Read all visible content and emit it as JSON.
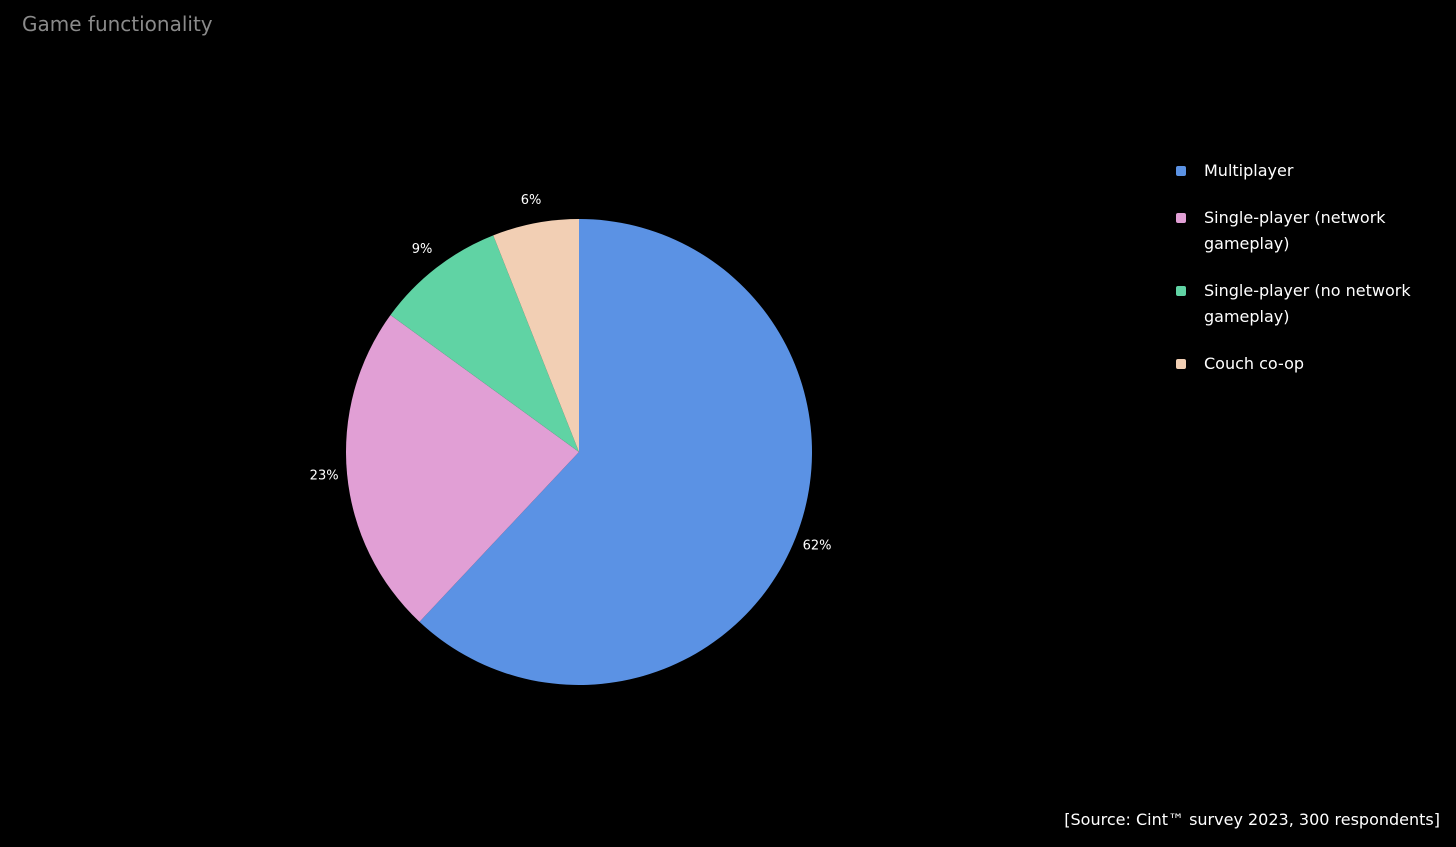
{
  "chart_data": {
    "type": "pie",
    "title": "Game functionality",
    "categories": [
      "Multiplayer",
      "Single-player (network gameplay)",
      "Single-player (no network gameplay)",
      "Couch co-op"
    ],
    "values": [
      62,
      23,
      9,
      6
    ],
    "value_labels": [
      "62%",
      "23%",
      "9%",
      "6%"
    ],
    "colors": [
      "#5b92e4",
      "#e19fd5",
      "#60d3a4",
      "#f2cfb4"
    ],
    "legend": "right",
    "source": "[Source: Cint™ survey 2023, 300 respondents]"
  }
}
